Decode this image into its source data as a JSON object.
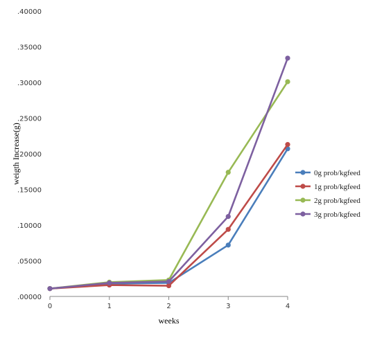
{
  "chart_data": {
    "type": "line",
    "title": "",
    "xlabel": "weeks",
    "ylabel": "weigth Increase(g)",
    "x": [
      0,
      1,
      2,
      3,
      4
    ],
    "x_tick_labels": [
      "0",
      "1",
      "2",
      "3",
      "4"
    ],
    "ylim": [
      0,
      0.4
    ],
    "y_tick_values": [
      0,
      0.05,
      0.1,
      0.15,
      0.2,
      0.25,
      0.3,
      0.35,
      0.4
    ],
    "y_tick_labels": [
      ".00000",
      ".05000",
      ".10000",
      ".15000",
      ".20000",
      ".25000",
      ".30000",
      ".35000",
      ".40000"
    ],
    "grid": false,
    "legend_position": "right",
    "series": [
      {
        "name": "0g prob/kgfeed",
        "color": "#4a7ebb",
        "values": [
          0.011,
          0.018,
          0.019,
          0.072,
          0.207
        ]
      },
      {
        "name": "1g prob/kgfeed",
        "color": "#be4b48",
        "values": [
          0.011,
          0.016,
          0.015,
          0.094,
          0.213
        ]
      },
      {
        "name": "2g prob/kgfeed",
        "color": "#98b954",
        "values": [
          0.011,
          0.02,
          0.023,
          0.174,
          0.301
        ]
      },
      {
        "name": "3g prob/kgfeed",
        "color": "#7d60a0",
        "values": [
          0.011,
          0.019,
          0.021,
          0.112,
          0.334
        ]
      }
    ]
  }
}
